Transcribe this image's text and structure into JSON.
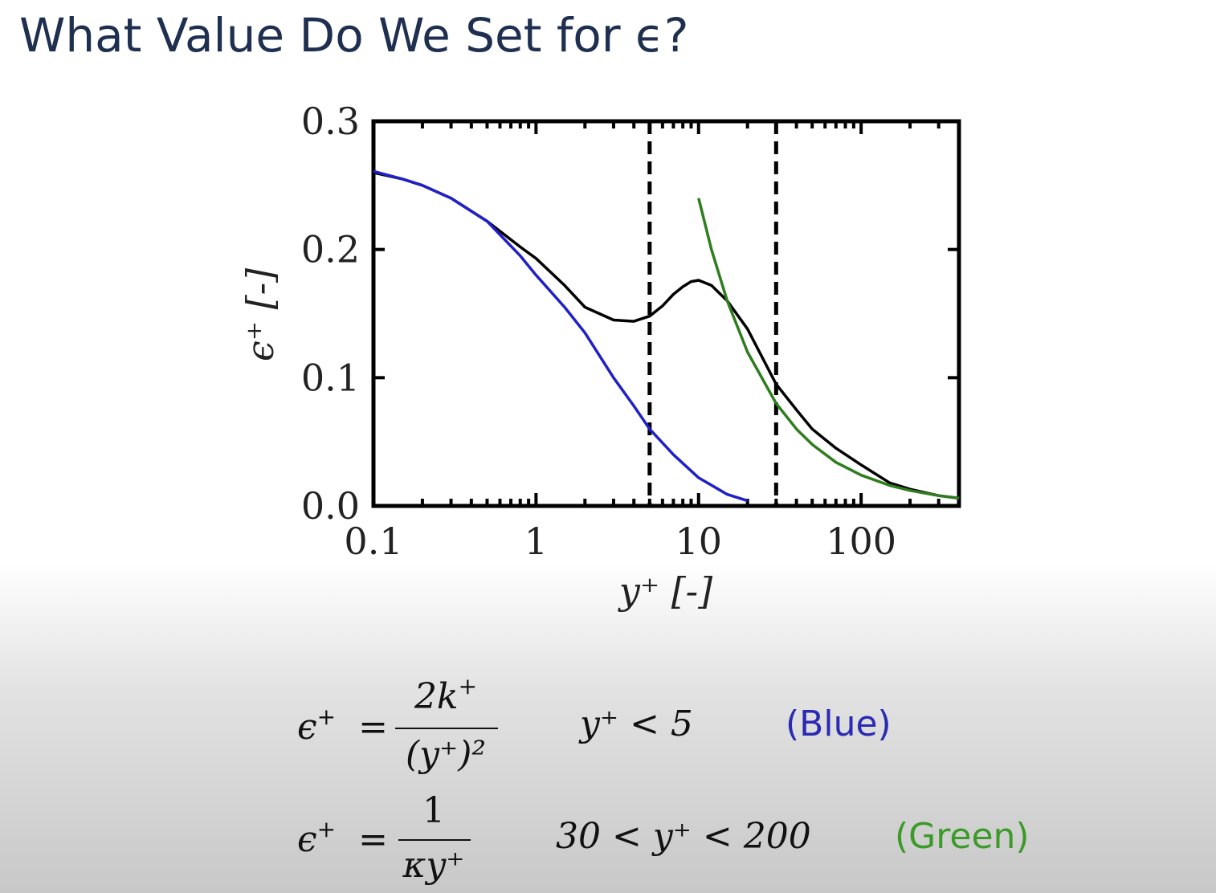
{
  "slide": {
    "title": "What Value Do We Set for ϵ?"
  },
  "chart_data": {
    "type": "line",
    "xlabel": "y⁺ [-]",
    "ylabel": "ϵ⁺ [-]",
    "xscale": "log",
    "xlim": [
      0.1,
      400
    ],
    "ylim": [
      0.0,
      0.3
    ],
    "xticks": [
      0.1,
      1,
      10,
      100
    ],
    "xtick_labels": [
      "0.1",
      "1",
      "10",
      "100"
    ],
    "yticks": [
      0.0,
      0.1,
      0.2,
      0.3
    ],
    "ytick_labels": [
      "0.0",
      "0.1",
      "0.2",
      "0.3"
    ],
    "grid": false,
    "vlines": [
      5,
      30
    ],
    "series": [
      {
        "color": "#000000",
        "x": [
          0.1,
          0.15,
          0.2,
          0.3,
          0.5,
          0.8,
          1.0,
          1.5,
          2.0,
          3.0,
          4.0,
          5.0,
          6.0,
          7.0,
          8.0,
          9.0,
          10.0,
          12.0,
          15.0,
          20.0,
          30.0,
          40.0,
          50.0,
          70.0,
          100.0,
          150.0,
          200.0,
          300.0,
          400.0
        ],
        "y": [
          0.26,
          0.255,
          0.25,
          0.24,
          0.222,
          0.202,
          0.193,
          0.172,
          0.155,
          0.145,
          0.144,
          0.148,
          0.156,
          0.165,
          0.171,
          0.175,
          0.176,
          0.172,
          0.16,
          0.138,
          0.095,
          0.075,
          0.06,
          0.045,
          0.032,
          0.018,
          0.013,
          0.008,
          0.006
        ]
      },
      {
        "color": "#2020c8",
        "x": [
          0.1,
          0.15,
          0.2,
          0.3,
          0.5,
          0.8,
          1.0,
          1.5,
          2.0,
          3.0,
          4.0,
          5.0,
          7.0,
          10.0,
          15.0,
          20.0
        ],
        "y": [
          0.261,
          0.255,
          0.25,
          0.24,
          0.222,
          0.195,
          0.18,
          0.155,
          0.135,
          0.1,
          0.078,
          0.06,
          0.04,
          0.022,
          0.009,
          0.004
        ]
      },
      {
        "color": "#2e7d1e",
        "x": [
          10,
          12,
          15,
          20,
          30,
          40,
          50,
          70,
          100,
          150,
          200,
          300,
          400
        ],
        "y": [
          0.24,
          0.2,
          0.16,
          0.12,
          0.08,
          0.06,
          0.048,
          0.034,
          0.024,
          0.016,
          0.012,
          0.008,
          0.006
        ]
      }
    ]
  },
  "equations": {
    "eq1": {
      "lhs": "ϵ",
      "lhs_sup": "+",
      "eq": "=",
      "num": "2k",
      "num_sup": "+",
      "den": "(y⁺)²",
      "condition": "y⁺ < 5",
      "tag": "(Blue)",
      "tag_color": "#2a2ab4"
    },
    "eq2": {
      "lhs": "ϵ",
      "lhs_sup": "+",
      "eq": "=",
      "num": "1",
      "den": "κy⁺",
      "condition": "30 < y⁺ < 200",
      "tag": "(Green)",
      "tag_color": "#3c9a28"
    }
  }
}
